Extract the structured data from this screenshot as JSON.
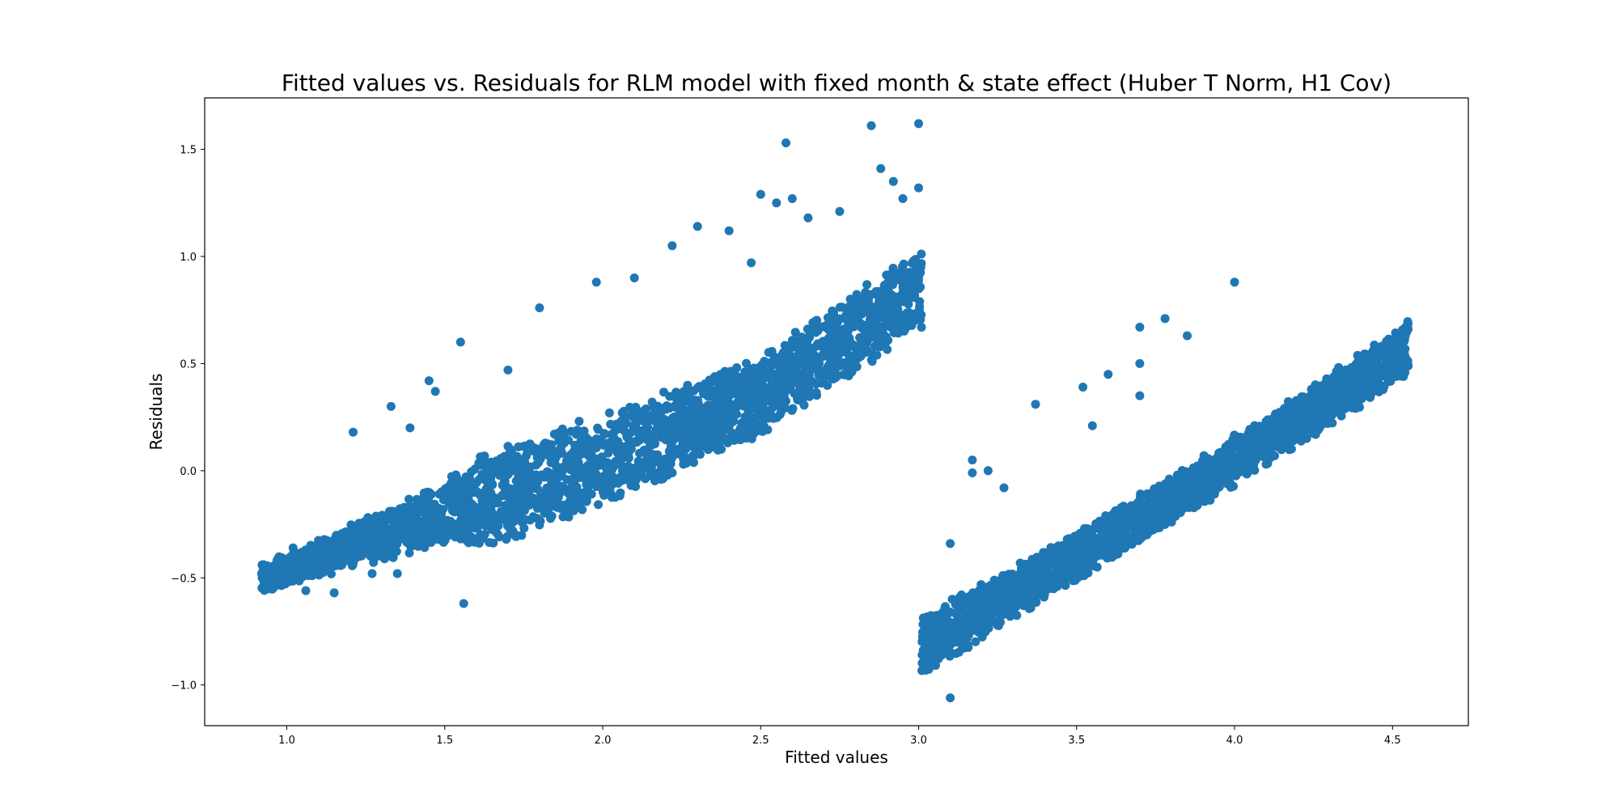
{
  "chart_data": {
    "type": "scatter",
    "title": "Fitted values vs. Residuals for RLM model with fixed month & state effect (Huber T Norm, H1 Cov)",
    "xlabel": "Fitted values",
    "ylabel": "Residuals",
    "xlim": [
      0.74,
      4.74
    ],
    "ylim": [
      -1.19,
      1.74
    ],
    "xticks": [
      1.0,
      1.5,
      2.0,
      2.5,
      3.0,
      3.5,
      4.0,
      4.5
    ],
    "xtick_labels": [
      "1.0",
      "1.5",
      "2.0",
      "2.5",
      "3.0",
      "3.5",
      "4.0",
      "4.5"
    ],
    "yticks": [
      -1.0,
      -0.5,
      0.0,
      0.5,
      1.0,
      1.5
    ],
    "ytick_labels": [
      "−1.0",
      "−0.5",
      "0.0",
      "0.5",
      "1.0",
      "1.5"
    ],
    "grid": false,
    "marker_color": "#1f77b4",
    "clusters": [
      {
        "x_range": [
          0.92,
          3.01
        ],
        "center_line": [
          [
            0.92,
            -0.5
          ],
          [
            1.5,
            -0.2
          ],
          [
            2.0,
            0.05
          ],
          [
            2.5,
            0.35
          ],
          [
            3.0,
            0.85
          ]
        ],
        "band": [
          [
            1.0,
            0.08
          ],
          [
            1.5,
            0.15
          ],
          [
            1.6,
            0.25
          ],
          [
            2.0,
            0.22
          ],
          [
            2.5,
            0.2
          ],
          [
            3.0,
            0.2
          ]
        ]
      },
      {
        "x_range": [
          3.01,
          4.55
        ],
        "center_line": [
          [
            3.01,
            -0.82
          ],
          [
            3.5,
            -0.4
          ],
          [
            4.0,
            0.05
          ],
          [
            4.55,
            0.57
          ]
        ],
        "band": [
          [
            3.0,
            0.15
          ],
          [
            3.5,
            0.12
          ],
          [
            4.0,
            0.12
          ],
          [
            4.55,
            0.14
          ]
        ]
      }
    ],
    "points": [
      [
        0.92,
        -0.48
      ],
      [
        0.95,
        -0.53
      ],
      [
        0.97,
        -0.47
      ],
      [
        1.0,
        -0.47
      ],
      [
        1.02,
        -0.36
      ],
      [
        1.03,
        -0.42
      ],
      [
        1.06,
        -0.56
      ],
      [
        1.08,
        -0.49
      ],
      [
        1.1,
        -0.45
      ],
      [
        1.12,
        -0.46
      ],
      [
        1.15,
        -0.57
      ],
      [
        1.21,
        0.18
      ],
      [
        1.27,
        -0.48
      ],
      [
        1.33,
        0.3
      ],
      [
        1.35,
        -0.48
      ],
      [
        1.39,
        0.2
      ],
      [
        1.45,
        0.42
      ],
      [
        1.47,
        0.37
      ],
      [
        1.55,
        0.6
      ],
      [
        1.56,
        -0.62
      ],
      [
        1.7,
        0.47
      ],
      [
        1.8,
        0.76
      ],
      [
        1.98,
        0.88
      ],
      [
        2.1,
        0.9
      ],
      [
        2.22,
        1.05
      ],
      [
        2.3,
        1.14
      ],
      [
        2.4,
        1.12
      ],
      [
        2.47,
        0.97
      ],
      [
        2.5,
        1.29
      ],
      [
        2.55,
        1.25
      ],
      [
        2.58,
        1.53
      ],
      [
        2.6,
        1.27
      ],
      [
        2.65,
        1.18
      ],
      [
        2.75,
        1.21
      ],
      [
        2.85,
        1.61
      ],
      [
        2.88,
        1.41
      ],
      [
        2.92,
        1.35
      ],
      [
        2.95,
        1.27
      ],
      [
        3.0,
        1.62
      ],
      [
        3.0,
        1.32
      ],
      [
        3.1,
        -0.34
      ],
      [
        3.17,
        0.05
      ],
      [
        3.17,
        -0.01
      ],
      [
        3.22,
        0.0
      ],
      [
        3.27,
        -0.08
      ],
      [
        3.37,
        0.31
      ],
      [
        3.52,
        0.39
      ],
      [
        3.6,
        0.45
      ],
      [
        3.7,
        0.67
      ],
      [
        3.7,
        0.5
      ],
      [
        3.7,
        0.35
      ],
      [
        3.78,
        0.71
      ],
      [
        3.85,
        0.63
      ],
      [
        4.0,
        0.88
      ],
      [
        3.1,
        -1.06
      ],
      [
        3.55,
        0.21
      ]
    ]
  }
}
